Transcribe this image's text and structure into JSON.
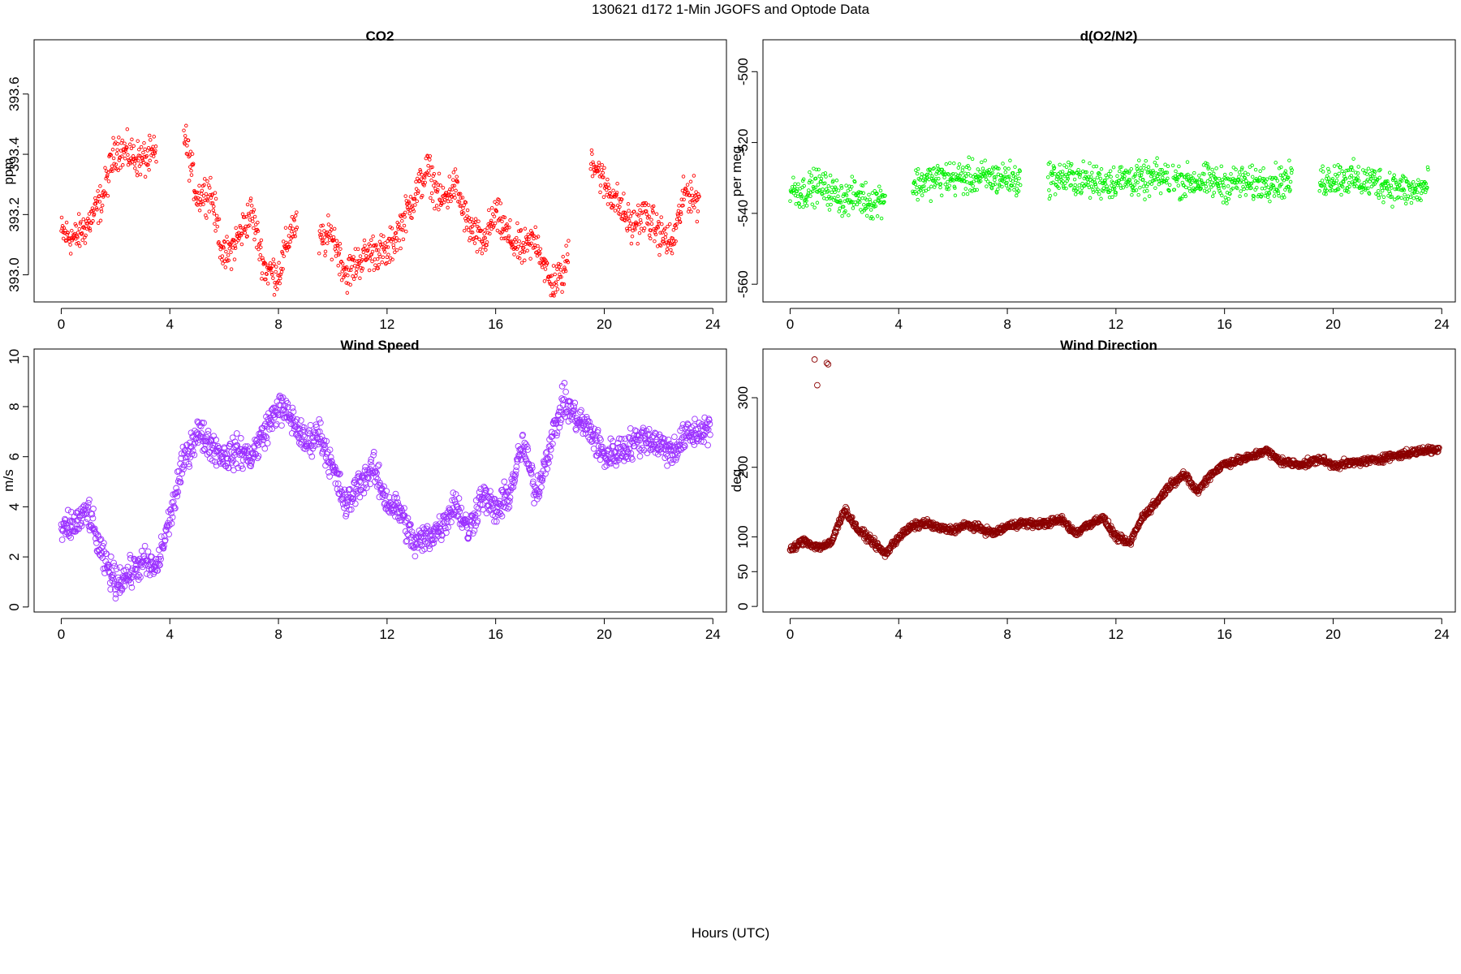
{
  "page": {
    "title": "130621   d172   1-Min  JGOFS and Optode Data",
    "xlabel": "Hours (UTC)"
  },
  "chart_data": [
    {
      "id": "co2",
      "type": "scatter",
      "title": "CO2",
      "xlabel": "",
      "ylabel": "ppm",
      "xlim": [
        -1,
        24.5
      ],
      "ylim": [
        392.91,
        393.78
      ],
      "x_ticks": [
        0,
        4,
        8,
        12,
        16,
        20,
        24
      ],
      "y_ticks": [
        393.0,
        393.2,
        393.4,
        393.6
      ],
      "y_tick_labels": [
        "393.0",
        "393.2",
        "393.4",
        "393.6"
      ],
      "color": "#ff0000",
      "marker_size": "small",
      "grid": false,
      "series": [
        {
          "gaps": [
            [
              3.5,
              4.5
            ],
            [
              8.7,
              9.5
            ],
            [
              18.7,
              19.5
            ]
          ],
          "x": [
            0.0,
            0.5,
            1.0,
            1.5,
            2.0,
            2.5,
            3.0,
            3.5,
            4.5,
            5.0,
            5.5,
            6.0,
            6.5,
            7.0,
            7.5,
            8.0,
            8.5,
            9.5,
            10.0,
            10.5,
            11.0,
            11.5,
            12.0,
            12.5,
            13.0,
            13.5,
            14.0,
            14.5,
            15.0,
            15.5,
            16.0,
            16.5,
            17.0,
            17.5,
            18.0,
            18.5,
            19.5,
            20.0,
            20.5,
            21.0,
            21.5,
            22.0,
            22.5,
            23.0,
            23.5
          ],
          "y": [
            393.14,
            393.12,
            393.17,
            393.25,
            393.42,
            393.4,
            393.38,
            393.4,
            393.48,
            393.26,
            393.28,
            393.05,
            393.12,
            393.21,
            393.02,
            393.0,
            393.16,
            393.11,
            393.13,
            393.0,
            393.05,
            393.08,
            393.07,
            393.16,
            393.26,
            393.35,
            393.24,
            393.3,
            393.16,
            393.1,
            393.2,
            393.12,
            393.08,
            393.12,
            392.97,
            393.0,
            393.4,
            393.3,
            393.24,
            393.16,
            393.2,
            393.14,
            393.1,
            393.28,
            393.24
          ],
          "spread": 0.09
        }
      ]
    },
    {
      "id": "o2n2",
      "type": "scatter",
      "title": "d(O2/N2)",
      "xlabel": "",
      "ylabel": "per meg",
      "xlim": [
        -1,
        24.5
      ],
      "ylim": [
        -565,
        -491
      ],
      "x_ticks": [
        0,
        4,
        8,
        12,
        16,
        20,
        24
      ],
      "y_ticks": [
        -560,
        -540,
        -520,
        -500
      ],
      "y_tick_labels": [
        "-560",
        "-540",
        "-520",
        "-500"
      ],
      "color": "#00ee00",
      "marker_size": "small",
      "grid": false,
      "series": [
        {
          "gaps": [
            [
              3.5,
              4.5
            ],
            [
              8.5,
              9.5
            ],
            [
              14.0,
              14.1
            ],
            [
              18.5,
              19.5
            ]
          ],
          "x": [
            0.0,
            0.5,
            1.0,
            1.5,
            2.0,
            2.5,
            3.0,
            3.5,
            4.5,
            5.0,
            5.5,
            6.0,
            6.5,
            7.0,
            7.5,
            8.0,
            8.5,
            9.5,
            10.0,
            10.5,
            11.0,
            11.5,
            12.0,
            12.5,
            13.0,
            13.5,
            14.0,
            14.5,
            15.0,
            15.5,
            16.0,
            16.5,
            17.0,
            17.5,
            18.0,
            18.5,
            19.5,
            20.0,
            20.5,
            21.0,
            21.5,
            22.0,
            22.5,
            23.0,
            23.5
          ],
          "y": [
            -533,
            -534,
            -532,
            -534,
            -536,
            -535,
            -537,
            -535,
            -532,
            -531,
            -530,
            -530,
            -530,
            -530,
            -530,
            -530,
            -531,
            -530,
            -530,
            -530,
            -531,
            -531,
            -531,
            -530,
            -531,
            -530,
            -530,
            -531,
            -531,
            -531,
            -532,
            -531,
            -532,
            -531,
            -531,
            -531,
            -531,
            -530,
            -530,
            -531,
            -531,
            -532,
            -533,
            -534,
            -532
          ],
          "spread": 7
        }
      ]
    },
    {
      "id": "wind-speed",
      "type": "scatter",
      "title": "Wind Speed",
      "xlabel": "",
      "ylabel": "m/s",
      "xlim": [
        -1,
        24.5
      ],
      "ylim": [
        -0.2,
        10.3
      ],
      "x_ticks": [
        0,
        4,
        8,
        12,
        16,
        20,
        24
      ],
      "y_ticks": [
        0,
        2,
        4,
        6,
        8,
        10
      ],
      "y_tick_labels": [
        "0",
        "2",
        "4",
        "6",
        "8",
        "10"
      ],
      "color": "#9b30ff",
      "marker_size": "large",
      "grid": false,
      "series": [
        {
          "gaps": [],
          "x": [
            0.0,
            0.5,
            1.0,
            1.5,
            2.0,
            2.5,
            3.0,
            3.5,
            4.0,
            4.5,
            5.0,
            5.5,
            6.0,
            6.5,
            7.0,
            7.5,
            8.0,
            8.5,
            9.0,
            9.5,
            10.0,
            10.5,
            11.0,
            11.5,
            12.0,
            12.5,
            13.0,
            13.5,
            14.0,
            14.5,
            15.0,
            15.5,
            16.0,
            16.5,
            17.0,
            17.5,
            18.0,
            18.5,
            19.0,
            19.5,
            20.0,
            20.5,
            21.0,
            21.5,
            22.0,
            22.5,
            23.0,
            23.5,
            23.9
          ],
          "y": [
            3.0,
            3.3,
            3.8,
            2.0,
            1.0,
            1.3,
            1.8,
            1.5,
            3.5,
            5.8,
            7.0,
            6.5,
            6.0,
            6.2,
            6.0,
            7.0,
            8.0,
            7.5,
            6.5,
            7.0,
            5.5,
            4.0,
            5.0,
            5.5,
            4.2,
            3.8,
            2.5,
            2.8,
            3.2,
            4.2,
            3.0,
            4.5,
            3.8,
            4.5,
            6.5,
            4.5,
            6.5,
            8.2,
            7.5,
            7.0,
            6.0,
            6.2,
            6.5,
            6.8,
            6.5,
            6.2,
            6.8,
            7.0,
            7.2
          ],
          "spread": 0.9
        }
      ]
    },
    {
      "id": "wind-direction",
      "type": "scatter",
      "title": "Wind Direction",
      "xlabel": "",
      "ylabel": "deg",
      "xlim": [
        -1,
        24.5
      ],
      "ylim": [
        -8,
        370
      ],
      "x_ticks": [
        0,
        4,
        8,
        12,
        16,
        20,
        24
      ],
      "y_ticks": [
        0,
        50,
        100,
        200,
        300
      ],
      "y_tick_labels": [
        "0",
        "50",
        "100",
        "200",
        "300"
      ],
      "color": "#8b0000",
      "marker_size": "large",
      "grid": false,
      "series": [
        {
          "gaps": [],
          "x": [
            0.0,
            0.5,
            1.0,
            1.5,
            2.0,
            2.5,
            3.0,
            3.5,
            4.0,
            4.5,
            5.0,
            5.5,
            6.0,
            6.5,
            7.0,
            7.5,
            8.0,
            8.5,
            9.0,
            9.5,
            10.0,
            10.5,
            11.0,
            11.5,
            12.0,
            12.5,
            13.0,
            13.5,
            14.0,
            14.5,
            15.0,
            15.5,
            16.0,
            16.5,
            17.0,
            17.5,
            18.0,
            18.5,
            19.0,
            19.5,
            20.0,
            20.5,
            21.0,
            21.5,
            22.0,
            22.5,
            23.0,
            23.5,
            23.9
          ],
          "y": [
            80,
            95,
            85,
            90,
            140,
            110,
            95,
            75,
            100,
            115,
            120,
            112,
            110,
            117,
            112,
            105,
            115,
            120,
            118,
            120,
            125,
            105,
            118,
            128,
            100,
            90,
            130,
            150,
            175,
            190,
            165,
            190,
            205,
            210,
            215,
            225,
            210,
            205,
            205,
            212,
            203,
            205,
            208,
            210,
            215,
            218,
            222,
            225,
            225
          ],
          "spread": 8,
          "outliers": [
            [
              0.9,
              355
            ],
            [
              1.35,
              350
            ],
            [
              1.4,
              348
            ],
            [
              1.0,
              318
            ]
          ]
        }
      ]
    }
  ]
}
